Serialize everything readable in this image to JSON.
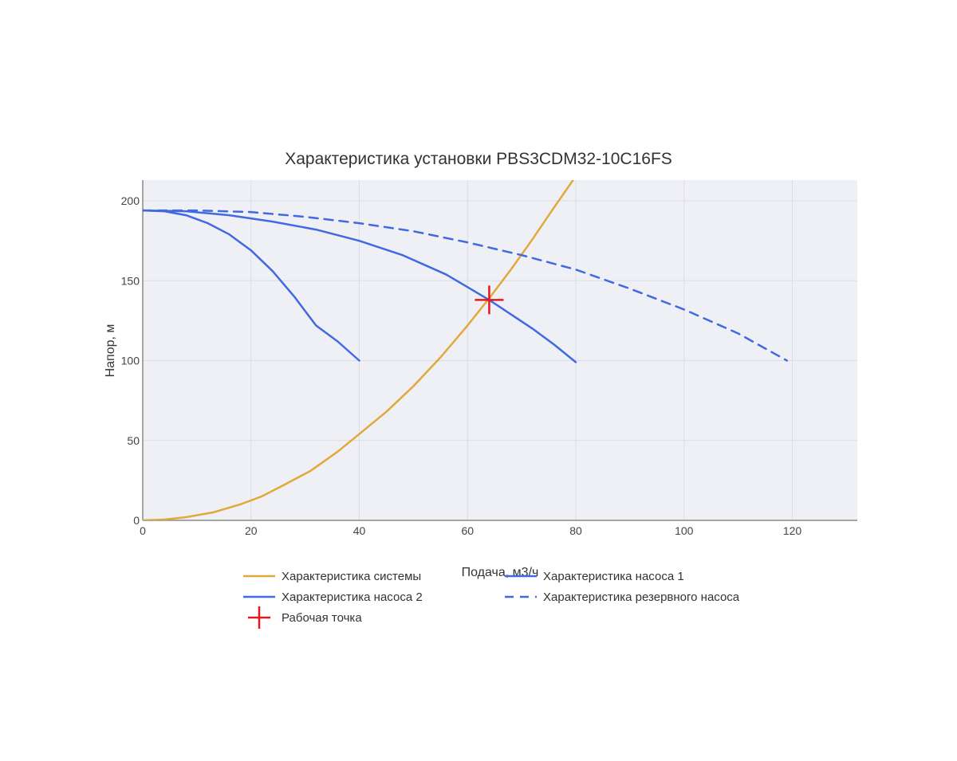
{
  "chart_data": {
    "type": "line",
    "title": "Характеристика установки PBS3CDM32-10C16FS",
    "xlabel": "Подача, м3/ч",
    "ylabel": "Напор, м",
    "xlim": [
      0,
      132
    ],
    "ylim": [
      0,
      213
    ],
    "xticks": [
      0,
      20,
      40,
      60,
      80,
      100,
      120
    ],
    "yticks": [
      0,
      50,
      100,
      150,
      200
    ],
    "grid": true,
    "background_color": "#eff0f5",
    "legend_position": "bottom",
    "series": [
      {
        "name": "Характеристика системы",
        "color": "#e0a93a",
        "dash": "solid",
        "x": [
          0,
          4,
          8,
          13,
          18,
          22,
          26,
          31,
          36,
          40,
          45,
          50,
          55,
          60,
          64,
          68,
          72,
          76,
          79.5
        ],
        "y": [
          0,
          0.5,
          2,
          5,
          10,
          15,
          22,
          31,
          43,
          54,
          68,
          84,
          102,
          122,
          139,
          157,
          176,
          196,
          213
        ]
      },
      {
        "name": "Характеристика насоса 1",
        "color": "#4169e1",
        "dash": "solid",
        "x": [
          0,
          4,
          8,
          12,
          16,
          20,
          24,
          28,
          32,
          36,
          40
        ],
        "y": [
          194,
          193.5,
          191,
          186,
          179,
          169,
          156,
          140,
          122,
          112,
          100
        ]
      },
      {
        "name": "Характеристика насоса 2",
        "color": "#4169e1",
        "dash": "solid",
        "x": [
          0,
          8,
          16,
          24,
          32,
          40,
          48,
          56,
          60,
          64,
          68,
          72,
          76,
          80
        ],
        "y": [
          194,
          193.5,
          191,
          187,
          182,
          175,
          166,
          154,
          146,
          138,
          129,
          120,
          110,
          99
        ]
      },
      {
        "name": "Характеристика резервного насоса",
        "color": "#4169e1",
        "dash": "dash",
        "x": [
          0,
          10,
          20,
          30,
          40,
          50,
          60,
          70,
          80,
          90,
          100,
          110,
          119
        ],
        "y": [
          194,
          194,
          193,
          190,
          186,
          181,
          174,
          166,
          157,
          145,
          132,
          117,
          100
        ]
      },
      {
        "name": "Рабочая точка",
        "color": "#e8151b",
        "marker": "cross",
        "x": [
          64
        ],
        "y": [
          138
        ]
      }
    ]
  }
}
